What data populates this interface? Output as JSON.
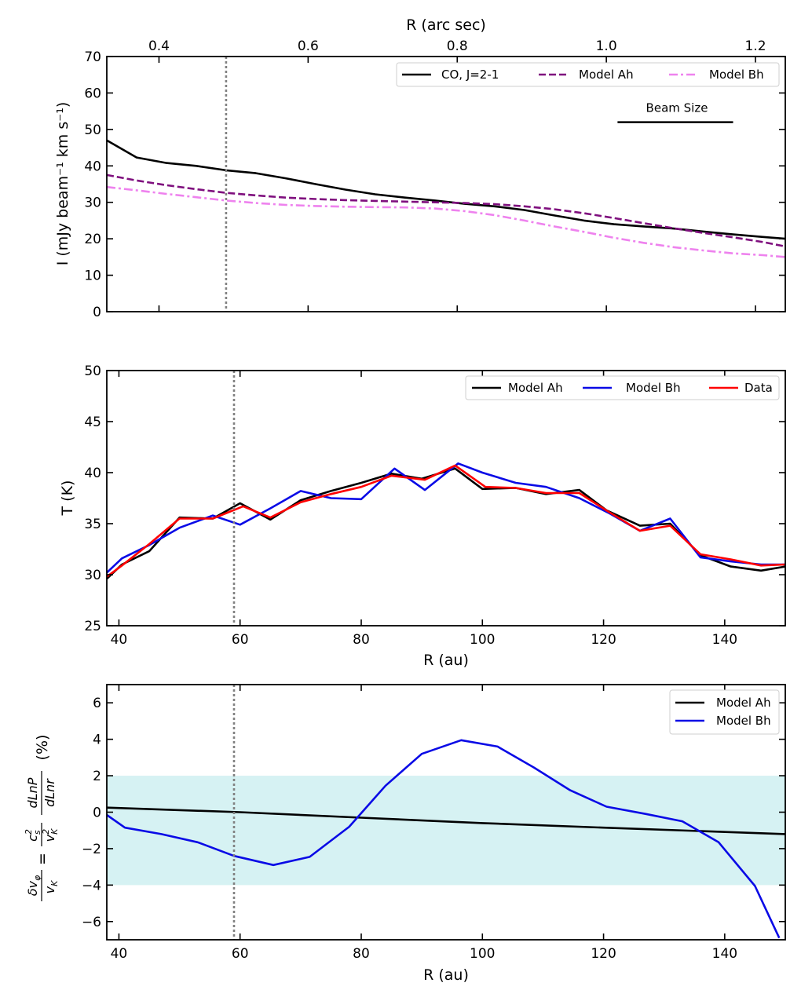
{
  "chart_data": [
    {
      "type": "line",
      "id": "intensity",
      "top_axis_label": "R (arc sec)",
      "top_ticks": [
        0.4,
        0.6,
        0.8,
        1.0,
        1.2
      ],
      "top_tick_labels": [
        "0.4",
        "0.6",
        "0.8",
        "1.0",
        "1.2"
      ],
      "top_xlim": [
        0.33,
        1.24
      ],
      "ylabel": "I (mJy beam⁻¹  km s⁻¹)",
      "ylim": [
        0,
        70
      ],
      "yticks": [
        0,
        10,
        20,
        30,
        40,
        50,
        60,
        70
      ],
      "vline_x": 0.49,
      "annotation": "Beam Size",
      "beam_range": [
        1.015,
        1.17
      ],
      "beam_y": 52,
      "legend": [
        "CO, J=2-1",
        "Model Ah",
        "Model Bh"
      ],
      "series": [
        {
          "name": "CO, J=2-1",
          "color": "#000000",
          "dash": "solid",
          "x": [
            0.33,
            0.37,
            0.41,
            0.45,
            0.49,
            0.53,
            0.57,
            0.61,
            0.65,
            0.69,
            0.73,
            0.77,
            0.81,
            0.85,
            0.89,
            0.93,
            0.97,
            1.01,
            1.05,
            1.09,
            1.13,
            1.17,
            1.21,
            1.24
          ],
          "y": [
            47,
            42.3,
            40.8,
            40,
            38.8,
            38,
            36.6,
            35,
            33.5,
            32.2,
            31.3,
            30.5,
            29.6,
            28.9,
            27.9,
            26.4,
            25,
            24,
            23.4,
            22.8,
            22,
            21.2,
            20.5,
            20
          ]
        },
        {
          "name": "Model Ah",
          "color": "#7f0f7e",
          "dash": "dashed",
          "x": [
            0.33,
            0.37,
            0.41,
            0.45,
            0.49,
            0.53,
            0.57,
            0.61,
            0.65,
            0.69,
            0.73,
            0.77,
            0.81,
            0.85,
            0.89,
            0.93,
            0.97,
            1.01,
            1.05,
            1.09,
            1.13,
            1.17,
            1.21,
            1.24
          ],
          "y": [
            37.5,
            36,
            34.7,
            33.6,
            32.6,
            31.9,
            31.3,
            30.9,
            30.6,
            30.4,
            30.2,
            30,
            29.8,
            29.5,
            28.9,
            28.1,
            27,
            25.7,
            24.3,
            22.9,
            21.6,
            20.4,
            19.1,
            17.9
          ]
        },
        {
          "name": "Model Bh",
          "color": "#ee82ee",
          "dash": "dashdot",
          "x": [
            0.33,
            0.37,
            0.41,
            0.45,
            0.49,
            0.53,
            0.57,
            0.61,
            0.65,
            0.69,
            0.73,
            0.77,
            0.81,
            0.85,
            0.89,
            0.93,
            0.97,
            1.01,
            1.05,
            1.09,
            1.13,
            1.17,
            1.21,
            1.24
          ],
          "y": [
            34.2,
            33.3,
            32.3,
            31.4,
            30.5,
            29.8,
            29.3,
            29,
            28.8,
            28.7,
            28.6,
            28.3,
            27.6,
            26.5,
            25,
            23.4,
            21.9,
            20.3,
            18.9,
            17.7,
            16.8,
            16,
            15.5,
            15
          ]
        }
      ]
    },
    {
      "type": "line",
      "id": "temperature",
      "xlabel": "R (au)",
      "ylabel": "T (K)",
      "xlim": [
        38,
        150
      ],
      "xticks": [
        40,
        60,
        80,
        100,
        120,
        140
      ],
      "ylim": [
        25,
        50
      ],
      "yticks": [
        25,
        30,
        35,
        40,
        45,
        50
      ],
      "vline_x": 59,
      "legend": [
        "Model Ah",
        "Model Bh",
        "Data"
      ],
      "series": [
        {
          "name": "Model Ah",
          "color": "#000000",
          "x": [
            38,
            40.5,
            45,
            50,
            55.5,
            60,
            65,
            70,
            75,
            80,
            85,
            90,
            95.5,
            100,
            105.5,
            110.5,
            116,
            120.5,
            126,
            131,
            136,
            141,
            146,
            150
          ],
          "y": [
            29.6,
            31,
            32.3,
            35.6,
            35.5,
            37,
            35.4,
            37.3,
            38.2,
            39,
            39.9,
            39.4,
            40.4,
            38.4,
            38.5,
            37.9,
            38.3,
            36.3,
            34.8,
            35,
            31.9,
            30.8,
            30.4,
            30.8
          ]
        },
        {
          "name": "Model Bh",
          "color": "#0a0ae6",
          "x": [
            38,
            40.5,
            45,
            50,
            55.5,
            60,
            65,
            70,
            75,
            80,
            85.5,
            90.5,
            96,
            100,
            105.5,
            110.5,
            116,
            121,
            126,
            131,
            136,
            141,
            146,
            150
          ],
          "y": [
            30.2,
            31.6,
            32.9,
            34.6,
            35.8,
            34.9,
            36.5,
            38.2,
            37.5,
            37.4,
            40.4,
            38.3,
            40.9,
            40,
            39,
            38.6,
            37.5,
            36,
            34.3,
            35.5,
            31.7,
            31.3,
            31,
            31
          ]
        },
        {
          "name": "Data",
          "color": "#ff0000",
          "x": [
            38,
            40.5,
            45,
            50,
            55.5,
            60.5,
            65,
            70,
            75,
            80,
            85,
            90.5,
            95.5,
            100.5,
            105.5,
            110.5,
            116,
            121,
            126,
            131,
            136,
            141,
            146,
            150
          ],
          "y": [
            29.8,
            30.9,
            33,
            35.5,
            35.5,
            36.7,
            35.6,
            37.1,
            37.9,
            38.6,
            39.7,
            39.3,
            40.7,
            38.6,
            38.5,
            38,
            38,
            36.1,
            34.3,
            34.8,
            32,
            31.5,
            30.9,
            31
          ]
        }
      ]
    },
    {
      "type": "line",
      "id": "velocity",
      "xlabel": "R (au)",
      "ylabel": "δvφ/vK = (cs²/vK²) dLnP/dLnr (%)",
      "ylabel_parts": {
        "frac_num": "δv",
        "frac_num_sub": "φ",
        "frac_den": "v",
        "frac_den_sub": "K",
        "equals": "=",
        "coef_num": "c",
        "coef_num_sup": "2",
        "coef_num_sub": "s",
        "coef_den": "v",
        "coef_den_sup": "2",
        "coef_den_sub": "K",
        "deriv_num": "dLnP",
        "deriv_den": "dLnr",
        "unit": "(%)"
      },
      "xlim": [
        38,
        150
      ],
      "xticks": [
        40,
        60,
        80,
        100,
        120,
        140
      ],
      "ylim": [
        -7,
        7
      ],
      "yticks": [
        -6,
        -4,
        -2,
        0,
        2,
        4,
        6
      ],
      "tick_labels": [
        "−6",
        "−4",
        "−2",
        "0",
        "2",
        "4",
        "6"
      ],
      "band": [
        -4,
        2
      ],
      "band_color": "#d6f2f3",
      "vline_x": 59,
      "legend": [
        "Model Ah",
        "Model Bh"
      ],
      "series": [
        {
          "name": "Model Ah",
          "color": "#000000",
          "x": [
            38,
            60,
            80,
            100,
            120,
            150
          ],
          "y": [
            0.25,
            0,
            -0.3,
            -0.6,
            -0.85,
            -1.2
          ]
        },
        {
          "name": "Model Bh",
          "color": "#0a0ae6",
          "x": [
            38,
            41,
            47,
            53,
            59,
            65.5,
            71.5,
            78,
            84,
            90,
            96.5,
            102.5,
            108.5,
            114.5,
            120.5,
            127,
            133,
            139,
            145,
            149
          ],
          "y": [
            -0.15,
            -0.85,
            -1.2,
            -1.65,
            -2.4,
            -2.9,
            -2.45,
            -0.8,
            1.45,
            3.2,
            3.95,
            3.6,
            2.45,
            1.2,
            0.3,
            -0.1,
            -0.5,
            -1.65,
            -4.05,
            -6.9
          ]
        }
      ]
    }
  ]
}
